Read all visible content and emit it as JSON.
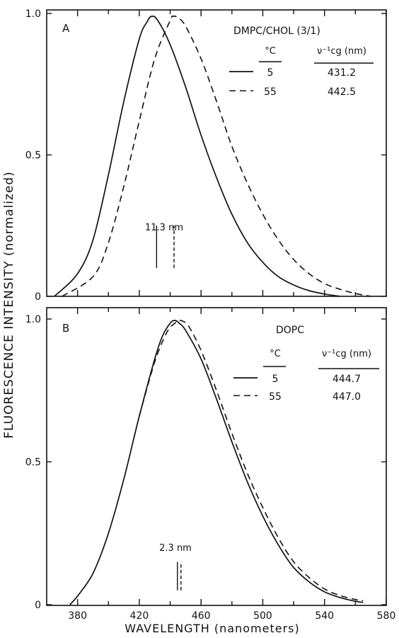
{
  "chart_data": [
    {
      "type": "line",
      "panel_label": "A",
      "sample": "DMPC/CHOL (3/1)",
      "xlabel": "WAVELENGTH (nanometers)",
      "ylabel": "FLUORESCENCE INTENSITY (normalized)",
      "xlim": [
        360,
        580
      ],
      "ylim": [
        0,
        1.0
      ],
      "yticks": [
        "0",
        "0.5",
        "1.0"
      ],
      "table_headers": {
        "temp": "°C",
        "center": "ν⁻¹cg (nm)"
      },
      "series": [
        {
          "name": "5",
          "center_nm": "431.2",
          "x": [
            365,
            380,
            390,
            400,
            410,
            420,
            425,
            428,
            432,
            440,
            450,
            460,
            470,
            480,
            490,
            500,
            510,
            520,
            530,
            540,
            550
          ],
          "y": [
            0.0,
            0.08,
            0.2,
            0.43,
            0.69,
            0.91,
            0.97,
            0.99,
            0.975,
            0.89,
            0.74,
            0.57,
            0.42,
            0.29,
            0.19,
            0.12,
            0.07,
            0.04,
            0.02,
            0.008,
            0.0
          ]
        },
        {
          "name": "55",
          "center_nm": "442.5",
          "x": [
            370,
            390,
            400,
            410,
            420,
            430,
            440,
            442,
            445,
            450,
            460,
            470,
            480,
            490,
            500,
            510,
            520,
            530,
            540,
            550,
            560,
            570
          ],
          "y": [
            0.0,
            0.07,
            0.19,
            0.39,
            0.62,
            0.84,
            0.975,
            0.99,
            0.985,
            0.955,
            0.84,
            0.69,
            0.53,
            0.4,
            0.29,
            0.2,
            0.13,
            0.08,
            0.045,
            0.025,
            0.01,
            0.0
          ]
        }
      ],
      "annotation": {
        "text": "11.3 nm",
        "marker_x": [
          431.2,
          442.5
        ],
        "marker_y": [
          0.1,
          0.25
        ]
      }
    },
    {
      "type": "line",
      "panel_label": "B",
      "sample": "DOPC",
      "xlabel": "WAVELENGTH (nanometers)",
      "xlim": [
        360,
        580
      ],
      "ylim": [
        0,
        1.0
      ],
      "xticks": [
        380,
        420,
        460,
        500,
        540,
        580
      ],
      "yticks": [
        "0",
        "0.5",
        "1.0"
      ],
      "table_headers": {
        "temp": "°C",
        "center": "ν⁻¹cg (nm)"
      },
      "series": [
        {
          "name": "5",
          "center_nm": "444.7",
          "x": [
            375,
            380,
            390,
            400,
            410,
            420,
            430,
            435,
            440,
            443,
            446,
            450,
            460,
            470,
            480,
            490,
            500,
            510,
            520,
            530,
            540,
            550,
            560,
            565
          ],
          "y": [
            0.0,
            0.03,
            0.11,
            0.25,
            0.44,
            0.66,
            0.86,
            0.94,
            0.985,
            0.995,
            0.985,
            0.96,
            0.86,
            0.72,
            0.57,
            0.43,
            0.31,
            0.21,
            0.13,
            0.08,
            0.045,
            0.025,
            0.012,
            0.008
          ]
        },
        {
          "name": "55",
          "center_nm": "447.0",
          "x": [
            420,
            430,
            438,
            443,
            446,
            449,
            452,
            460,
            470,
            480,
            490,
            500,
            510,
            520,
            530,
            540,
            550,
            560,
            565
          ],
          "y": [
            0.66,
            0.85,
            0.955,
            0.985,
            0.995,
            0.99,
            0.975,
            0.89,
            0.75,
            0.6,
            0.46,
            0.34,
            0.235,
            0.15,
            0.095,
            0.055,
            0.032,
            0.018,
            0.014
          ]
        }
      ],
      "annotation": {
        "text": "2.3 nm",
        "marker_x": [
          444.7,
          447.0
        ],
        "marker_y": [
          0.05,
          0.15
        ]
      }
    }
  ]
}
